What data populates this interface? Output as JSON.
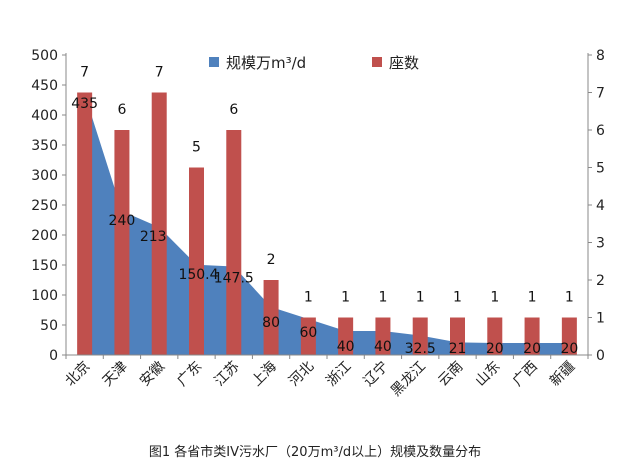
{
  "caption": "图1 各省市类IV污水厂（20万m³/d以上）规模及数量分布",
  "chart_data": {
    "type": "bar+area",
    "categories": [
      "北京",
      "天津",
      "安徽",
      "广东",
      "江苏",
      "上海",
      "河北",
      "浙江",
      "辽宁",
      "黑龙江",
      "云南",
      "山东",
      "广西",
      "新疆"
    ],
    "series": [
      {
        "name": "规模万m³/d",
        "type": "area",
        "axis": "left",
        "color": "#4f81bd",
        "values": [
          435,
          240,
          213,
          150.4,
          147.5,
          80,
          60,
          40,
          40,
          32.5,
          21,
          20,
          20,
          20
        ],
        "labels": [
          "435",
          "240",
          "213",
          "150.4",
          "147.5",
          "80",
          "60",
          "40",
          "40",
          "32.5",
          "21",
          "20",
          "20",
          "20"
        ]
      },
      {
        "name": "座数",
        "type": "bar",
        "axis": "right",
        "color": "#c0504d",
        "values": [
          7,
          6,
          7,
          5,
          6,
          2,
          1,
          1,
          1,
          1,
          1,
          1,
          1,
          1
        ],
        "labels": [
          "7",
          "6",
          "7",
          "5",
          "6",
          "2",
          "1",
          "1",
          "1",
          "1",
          "1",
          "1",
          "1",
          "1"
        ]
      }
    ],
    "y_left": {
      "ylim": [
        0,
        500
      ],
      "ticks": [
        "0",
        "50",
        "100",
        "150",
        "200",
        "250",
        "300",
        "350",
        "400",
        "450",
        "500"
      ]
    },
    "y_right": {
      "ylim": [
        0,
        8
      ],
      "ticks": [
        "0",
        "1",
        "2",
        "3",
        "4",
        "5",
        "6",
        "7",
        "8"
      ]
    },
    "legend": {
      "position": "top",
      "entries": [
        "规模万m³/d",
        "座数"
      ]
    },
    "grid": false
  }
}
